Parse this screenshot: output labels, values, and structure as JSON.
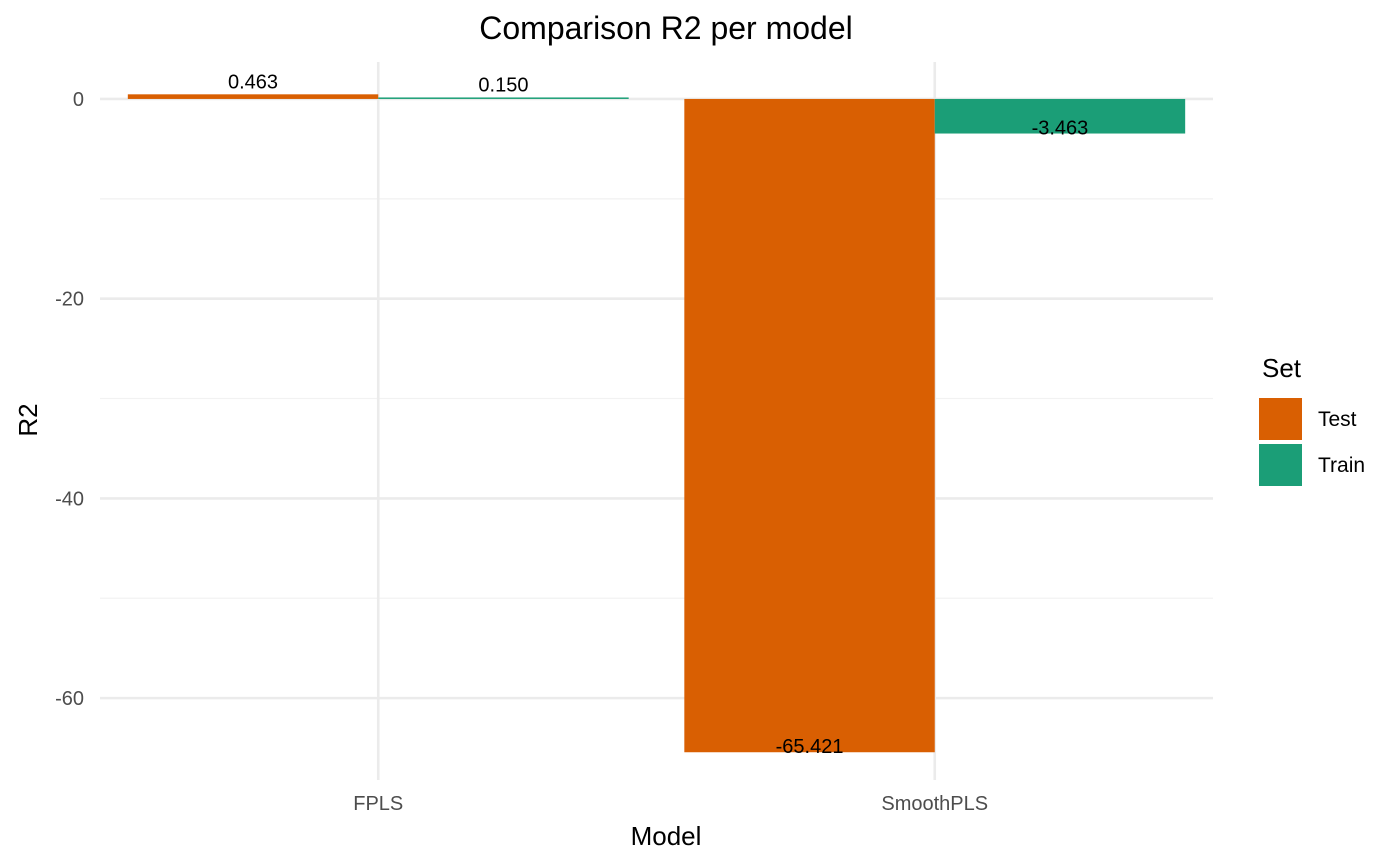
{
  "chart_data": {
    "type": "bar",
    "title": "Comparison R2 per model",
    "xlabel": "Model",
    "ylabel": "R2",
    "categories": [
      "FPLS",
      "SmoothPLS"
    ],
    "series": [
      {
        "name": "Test",
        "values": [
          0.463,
          -65.421
        ],
        "labels": [
          "0.463",
          "-65.421"
        ],
        "color": "#d95f02"
      },
      {
        "name": "Train",
        "values": [
          0.15,
          -3.463
        ],
        "labels": [
          "0.150",
          "-3.463"
        ],
        "color": "#1b9e77"
      }
    ],
    "ylim": [
      -68.2,
      3.7
    ],
    "yticks": [
      0,
      -20,
      -40,
      -60
    ],
    "ytick_labels": [
      "0",
      "-20",
      "-40",
      "-60"
    ],
    "grid": true,
    "legend": {
      "title": "Set",
      "position": "right"
    }
  }
}
